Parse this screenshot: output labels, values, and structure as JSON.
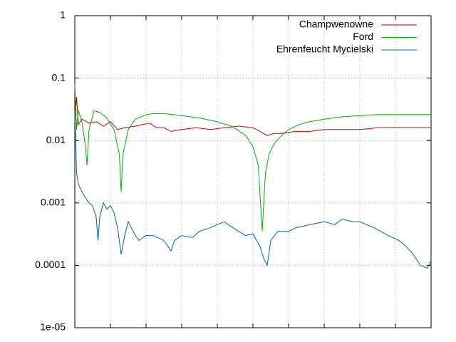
{
  "chart_data": {
    "type": "line",
    "log_y": true,
    "grid": true,
    "legend": "top-right",
    "xlim": [
      0,
      100
    ],
    "xticks": [
      10,
      20,
      30,
      40,
      50,
      60,
      70,
      80,
      90
    ],
    "ylim": [
      1e-05,
      1
    ],
    "yticks": [
      {
        "value": 1e-05,
        "label": "1e-05"
      },
      0.0001,
      0.001,
      0.01,
      0.1,
      1
    ],
    "series": [
      {
        "name": "Champwenowne",
        "color": "#cc0000",
        "x": [
          0,
          0.5,
          1,
          2,
          4,
          6,
          8,
          10,
          12,
          14,
          17,
          19,
          21,
          23,
          25,
          27,
          30,
          34,
          38,
          42,
          46,
          50,
          52,
          54,
          56,
          58,
          62,
          66,
          70,
          75,
          80,
          85,
          90,
          95,
          100
        ],
        "values": [
          0.02,
          0.05,
          0.018,
          0.022,
          0.019,
          0.02,
          0.017,
          0.02,
          0.015,
          0.016,
          0.017,
          0.018,
          0.019,
          0.016,
          0.016,
          0.014,
          0.015,
          0.016,
          0.015,
          0.016,
          0.017,
          0.016,
          0.014,
          0.012,
          0.013,
          0.013,
          0.014,
          0.014,
          0.015,
          0.015,
          0.015,
          0.016,
          0.016,
          0.016,
          0.016
        ]
      },
      {
        "name": "Ford",
        "color": "#00b000",
        "x": [
          0,
          0.5,
          1,
          2,
          3,
          3.4,
          4,
          5.4,
          7,
          9,
          11,
          12.5,
          13,
          13.5,
          15,
          17,
          20,
          22,
          25,
          30,
          35,
          40,
          44,
          48,
          50,
          51.5,
          52.6,
          53.5,
          54.5,
          56,
          58,
          60,
          63,
          66,
          70,
          75,
          80,
          85,
          90,
          95,
          100
        ],
        "values": [
          0.08,
          0.015,
          0.03,
          0.02,
          0.008,
          0.004,
          0.015,
          0.03,
          0.028,
          0.023,
          0.015,
          0.006,
          0.0015,
          0.006,
          0.015,
          0.022,
          0.026,
          0.027,
          0.027,
          0.025,
          0.023,
          0.02,
          0.017,
          0.012,
          0.008,
          0.004,
          0.00035,
          0.003,
          0.006,
          0.009,
          0.012,
          0.015,
          0.018,
          0.02,
          0.022,
          0.024,
          0.025,
          0.026,
          0.026,
          0.026,
          0.026
        ]
      },
      {
        "name": "Ehrenfeucht Mycielski",
        "color": "#0060c0",
        "x": [
          0,
          0.5,
          1,
          2,
          3,
          4,
          5,
          6,
          6.5,
          7,
          8,
          9,
          10,
          11,
          12,
          13,
          14,
          15,
          17,
          18,
          20,
          22,
          25,
          27,
          28,
          30,
          33,
          35,
          38,
          40,
          42,
          43,
          46,
          48,
          50,
          52,
          53,
          54,
          55,
          57,
          60,
          62,
          66,
          70,
          73,
          75,
          78,
          80,
          84,
          88,
          91,
          93,
          95,
          97,
          99,
          100
        ],
        "values": [
          0.03,
          0.003,
          0.002,
          0.0015,
          0.0012,
          0.001,
          0.0009,
          0.0006,
          0.00025,
          0.0006,
          0.001,
          0.0008,
          0.0009,
          0.0007,
          0.0004,
          0.00015,
          0.0003,
          0.0005,
          0.0003,
          0.00025,
          0.0003,
          0.0003,
          0.00025,
          0.00017,
          0.00025,
          0.0003,
          0.00028,
          0.00035,
          0.0004,
          0.00045,
          0.0005,
          0.00045,
          0.00035,
          0.0003,
          0.00032,
          0.0002,
          0.00013,
          0.0001,
          0.00025,
          0.00035,
          0.00035,
          0.0004,
          0.00045,
          0.0005,
          0.00045,
          0.00055,
          0.0005,
          0.0005,
          0.0004,
          0.0003,
          0.00025,
          0.0002,
          0.00015,
          0.0001,
          9e-05,
          0.00012
        ]
      }
    ]
  }
}
